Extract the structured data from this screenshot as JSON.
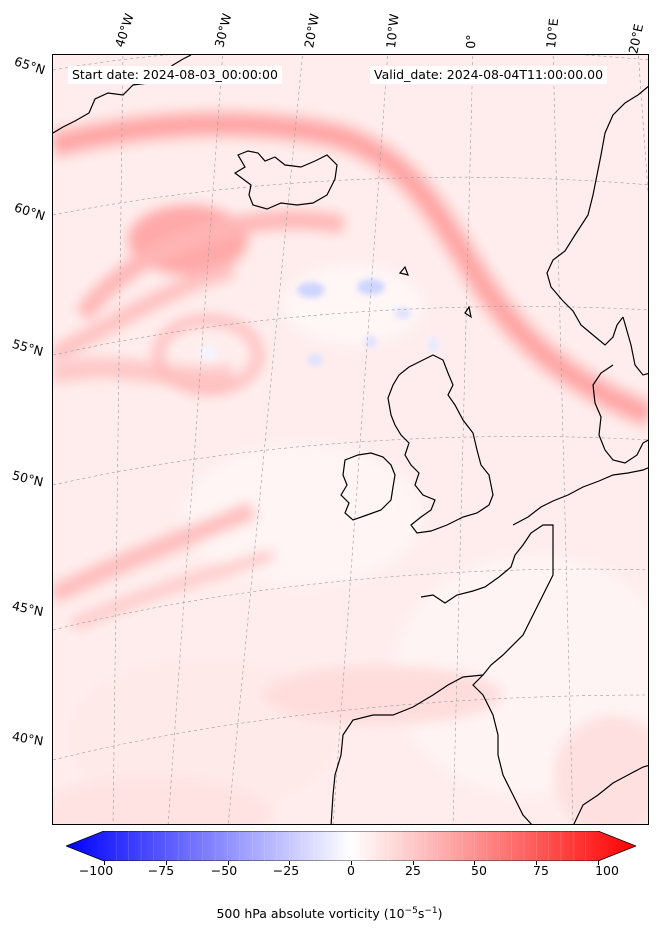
{
  "header": {
    "start_date": "Start date: 2024-08-03_00:00:00",
    "valid_date": "Valid_date: 2024-08-04T11:00:00.00"
  },
  "longitude_labels": [
    "40°W",
    "30°W",
    "20°W",
    "10°W",
    "0°",
    "10°E",
    "20°E"
  ],
  "latitude_labels": [
    "65°N",
    "60°N",
    "55°N",
    "50°N",
    "45°N",
    "40°N"
  ],
  "colorbar": {
    "label_prefix": "500 hPa absolute vorticity (10",
    "label_exp1": "−5",
    "label_mid": "s",
    "label_exp2": "−1",
    "label_suffix": ")",
    "ticks": [
      "−100",
      "−75",
      "−50",
      "−25",
      "0",
      "25",
      "50",
      "75",
      "100"
    ],
    "min": -100,
    "max": 100,
    "colormap": "bwr",
    "low_color": "#0000ff",
    "mid_color": "#ffffff",
    "high_color": "#ff0000"
  },
  "map": {
    "field": "500 hPa absolute vorticity",
    "region": "North Atlantic and Western Europe",
    "coastline_color": "#000000",
    "gridline_color": "#aaaaaa"
  }
}
